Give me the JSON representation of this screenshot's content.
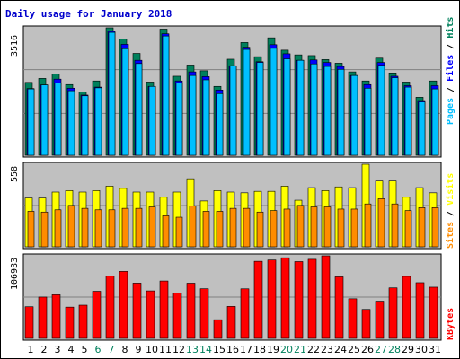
{
  "chart_data": [
    {
      "type": "bar",
      "title": "Daily usage for January 2018",
      "ymax_label": "3516",
      "ymax": 3516,
      "categories": [
        "1",
        "2",
        "3",
        "4",
        "5",
        "6",
        "7",
        "8",
        "9",
        "10",
        "11",
        "12",
        "13",
        "14",
        "15",
        "16",
        "17",
        "18",
        "19",
        "20",
        "21",
        "22",
        "23",
        "24",
        "25",
        "26",
        "27",
        "28",
        "29",
        "30",
        "31"
      ],
      "weekend_days": [
        "6",
        "7",
        "13",
        "14",
        "20",
        "21",
        "27",
        "28"
      ],
      "series": [
        {
          "name": "Hits",
          "color": "#00805c",
          "values": [
            2010,
            2120,
            2240,
            1950,
            1750,
            2050,
            3516,
            3210,
            2810,
            2020,
            3480,
            2180,
            2490,
            2330,
            1900,
            2650,
            3110,
            2720,
            3240,
            2900,
            2770,
            2750,
            2640,
            2540,
            2300,
            2050,
            2680,
            2270,
            2020,
            1600,
            2050
          ]
        },
        {
          "name": "Files",
          "color": "#0000ff",
          "values": [
            1840,
            1940,
            2100,
            1850,
            1660,
            1880,
            3420,
            3060,
            2620,
            1900,
            3350,
            2050,
            2300,
            2170,
            1800,
            2470,
            2980,
            2580,
            3050,
            2800,
            2620,
            2630,
            2560,
            2450,
            2200,
            1950,
            2560,
            2180,
            1920,
            1510,
            1920
          ]
        },
        {
          "name": "Pages",
          "color": "#00bfff",
          "values": [
            1830,
            1940,
            1990,
            1780,
            1640,
            1860,
            3390,
            2940,
            2530,
            1900,
            3290,
            2000,
            2200,
            2080,
            1700,
            2460,
            2920,
            2560,
            2950,
            2660,
            2620,
            2520,
            2450,
            2370,
            2200,
            1850,
            2480,
            2140,
            1880,
            1470,
            1830
          ]
        }
      ]
    },
    {
      "type": "bar",
      "ymax_label": "558",
      "ymax": 558,
      "categories": [
        "1",
        "2",
        "3",
        "4",
        "5",
        "6",
        "7",
        "8",
        "9",
        "10",
        "11",
        "12",
        "13",
        "14",
        "15",
        "16",
        "17",
        "18",
        "19",
        "20",
        "21",
        "22",
        "23",
        "24",
        "25",
        "26",
        "27",
        "28",
        "29",
        "30",
        "31"
      ],
      "series": [
        {
          "name": "Visits",
          "color": "#ffff00",
          "values": [
            330,
            330,
            370,
            380,
            370,
            380,
            410,
            395,
            370,
            370,
            335,
            370,
            460,
            310,
            380,
            370,
            365,
            375,
            375,
            410,
            315,
            400,
            380,
            405,
            400,
            558,
            445,
            445,
            335,
            400,
            365
          ]
        },
        {
          "name": "Sites",
          "color": "#ff8c00",
          "values": [
            240,
            235,
            250,
            280,
            260,
            250,
            250,
            260,
            260,
            270,
            210,
            200,
            275,
            240,
            240,
            260,
            260,
            235,
            245,
            255,
            280,
            270,
            270,
            255,
            255,
            290,
            325,
            290,
            245,
            265,
            265
          ]
        }
      ]
    },
    {
      "type": "bar",
      "ymax_label": "106933",
      "ymax": 106933,
      "categories": [
        "1",
        "2",
        "3",
        "4",
        "5",
        "6",
        "7",
        "8",
        "9",
        "10",
        "11",
        "12",
        "13",
        "14",
        "15",
        "16",
        "17",
        "18",
        "19",
        "20",
        "21",
        "22",
        "23",
        "24",
        "25",
        "26",
        "27",
        "28",
        "29",
        "30",
        "31"
      ],
      "series": [
        {
          "name": "KBytes",
          "color": "#ff0000",
          "values": [
            41000,
            53500,
            56500,
            40500,
            43000,
            61000,
            80800,
            86700,
            71600,
            61500,
            74300,
            58600,
            71500,
            64300,
            24200,
            41400,
            64200,
            99800,
            101500,
            104400,
            99400,
            102400,
            106933,
            79700,
            51300,
            37500,
            48200,
            65400,
            80300,
            72100,
            66300
          ]
        }
      ]
    }
  ]
}
